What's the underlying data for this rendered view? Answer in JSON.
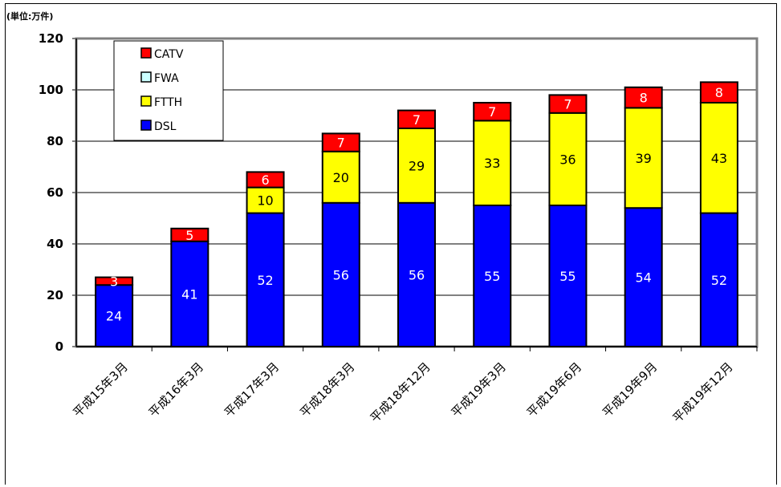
{
  "chart_data": {
    "type": "bar",
    "stacked": true,
    "unit_label": "(単位:万件)",
    "categories": [
      "平成15年3月",
      "平成16年3月",
      "平成17年3月",
      "平成18年3月",
      "平成18年12月",
      "平成19年3月",
      "平成19年6月",
      "平成19年9月",
      "平成19年12月"
    ],
    "series": [
      {
        "name": "DSL",
        "color": "#0000ff",
        "label_color": "#ffffff",
        "values": [
          0,
          41,
          52,
          56,
          56,
          55,
          55,
          54,
          52
        ],
        "labels": [
          "",
          "41",
          "52",
          "56",
          "56",
          "55",
          "55",
          "54",
          "52"
        ]
      },
      {
        "name": "FTTH",
        "color": "#ffff00",
        "label_color": "#000000",
        "values": [
          0,
          0,
          10,
          20,
          29,
          33,
          36,
          39,
          43
        ],
        "labels": [
          "",
          "",
          "10",
          "20",
          "29",
          "33",
          "36",
          "39",
          "43"
        ]
      },
      {
        "name": "FWA",
        "color": "#ccffff",
        "label_color": "#000000",
        "values": [
          0,
          0,
          0,
          0,
          0,
          0,
          0,
          0,
          0
        ],
        "labels": [
          "",
          "",
          "",
          "",
          "",
          "",
          "",
          "",
          ""
        ]
      },
      {
        "name": "CATV",
        "color": "#ff0000",
        "label_color": "#ffffff",
        "values": [
          0,
          5,
          6,
          7,
          7,
          7,
          7,
          8,
          8
        ],
        "labels": [
          "",
          "5",
          "6",
          "7",
          "7",
          "7",
          "7",
          "8",
          "8"
        ]
      }
    ],
    "bar_overrides": [
      {
        "category_index": 0,
        "DSL": 24,
        "CATV": 3,
        "label_DSL": "24",
        "label_CATV": "3"
      }
    ],
    "legend": [
      "CATV",
      "FWA",
      "FTTH",
      "DSL"
    ],
    "legend_position": "top-left",
    "ylim": [
      0,
      120
    ],
    "yticks": [
      "0",
      "20",
      "40",
      "60",
      "80",
      "100",
      "120"
    ],
    "grid": true,
    "xlabel": "",
    "ylabel": ""
  }
}
